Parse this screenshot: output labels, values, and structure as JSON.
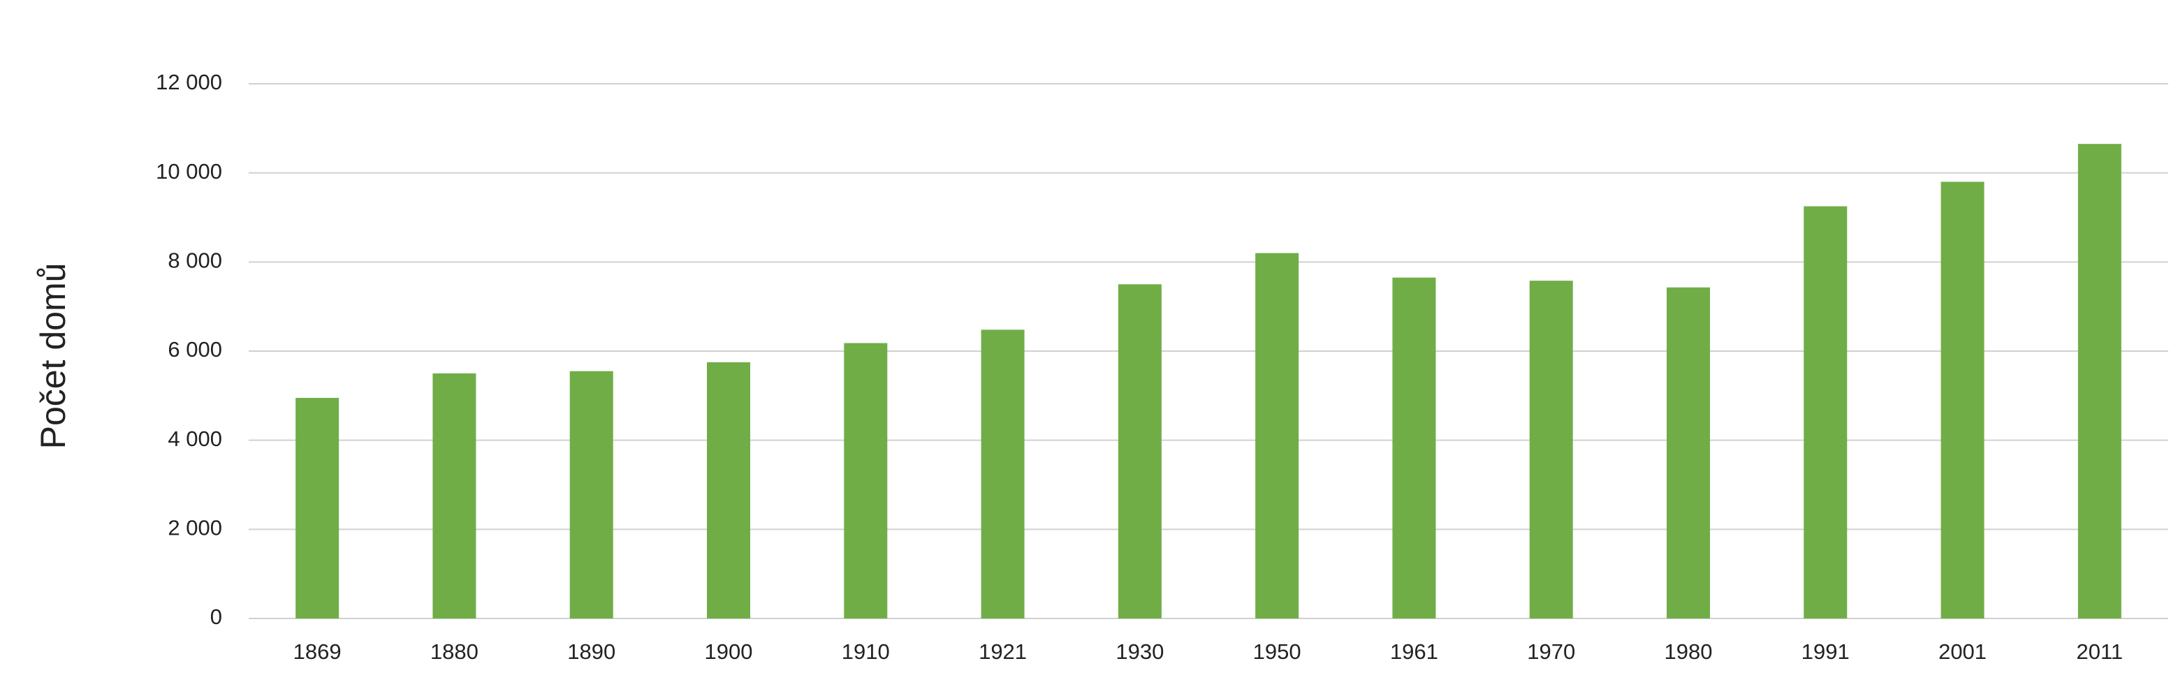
{
  "chart_data": {
    "type": "bar",
    "y_label": "Počet domů",
    "categories": [
      "1869",
      "1880",
      "1890",
      "1900",
      "1910",
      "1921",
      "1930",
      "1950",
      "1961",
      "1970",
      "1980",
      "1991",
      "2001",
      "2011"
    ],
    "values": [
      4950,
      5500,
      5550,
      5750,
      6180,
      6480,
      7500,
      8200,
      7650,
      7580,
      7430,
      9250,
      9800,
      10650
    ],
    "color": "#70ad47",
    "ylim": [
      0,
      12000
    ],
    "yticks": [
      0,
      {
        "value": 2000,
        "label": "2 000"
      },
      {
        "value": 4000,
        "label": "4 000"
      },
      {
        "value": 6000,
        "label": "6 000"
      },
      {
        "value": 8000,
        "label": "8 000"
      },
      {
        "value": 10000,
        "label": "10 000"
      },
      {
        "value": 12000,
        "label": "12 000"
      }
    ],
    "grid": true
  }
}
